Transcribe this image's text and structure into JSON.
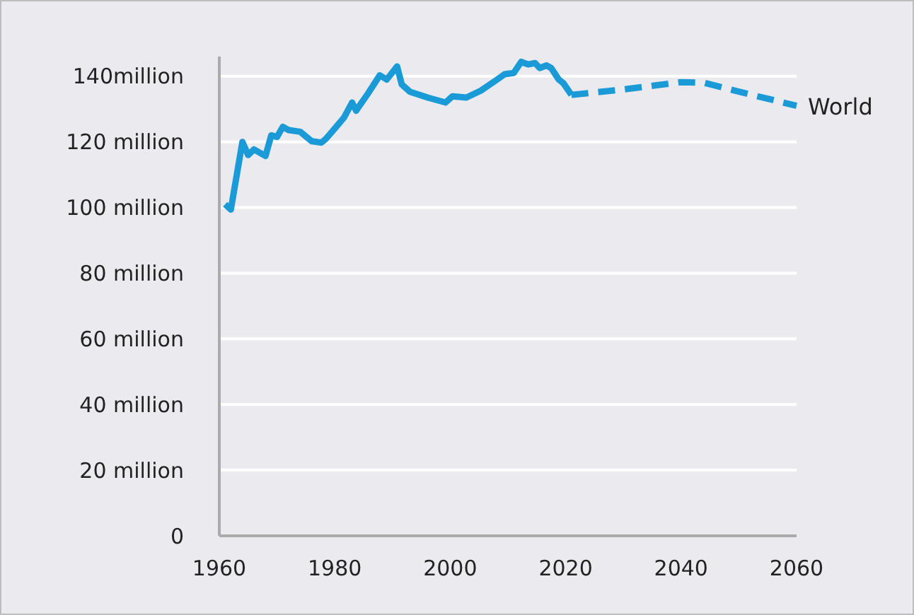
{
  "chart_data": {
    "type": "line",
    "xlim": [
      1960,
      2060
    ],
    "xticks": [
      1960,
      1980,
      2000,
      2020,
      2040,
      2060
    ],
    "ylim": [
      0,
      146
    ],
    "yticks": [
      0,
      {
        "value": 20,
        "label": "20 million"
      },
      {
        "value": 40,
        "label": "40 million"
      },
      {
        "value": 60,
        "label": "60 million"
      },
      {
        "value": 80,
        "label": "80 million"
      },
      {
        "value": 100,
        "label": "100 million"
      },
      {
        "value": 120,
        "label": "120 million"
      },
      {
        "value": 140,
        "label": "140million"
      }
    ],
    "grid": "y",
    "series": [
      {
        "color": "#1a9ad6",
        "line_style": "solid",
        "x": [
          1961,
          1962,
          1964,
          1965,
          1966,
          1968,
          1969,
          1970,
          1971,
          1972,
          1974,
          1976,
          1977.7,
          1978.5,
          1980.4,
          1981.6,
          1983,
          1983.7,
          1985.7,
          1987.8,
          1989,
          1990.8,
          1991.6,
          1993,
          1996.3,
          1999.2,
          2000.4,
          2002.8,
          2005.3,
          2007.8,
          2009.4,
          2011,
          2012.3,
          2013.5,
          2014.7,
          2015.5,
          2016.7,
          2017.5,
          2018.8,
          2019.6,
          2021
        ],
        "values": [
          101,
          99.4,
          120,
          116,
          117.7,
          115.7,
          122,
          121.5,
          124.6,
          123.6,
          123.1,
          120.2,
          119.8,
          121,
          124.9,
          127.4,
          132,
          129.5,
          134.6,
          140.3,
          139,
          143,
          137.5,
          135.3,
          133.4,
          132,
          133.9,
          133.5,
          135.6,
          138.6,
          140.6,
          141,
          144.4,
          143.6,
          144,
          142.5,
          143.3,
          142.5,
          139,
          137.9,
          134.3
        ]
      },
      {
        "name": "World",
        "color": "#1a9ad6",
        "line_style": "dashed",
        "x": [
          2021,
          2030,
          2040,
          2044,
          2050,
          2060
        ],
        "values": [
          134.3,
          136,
          138.2,
          138,
          135.3,
          131
        ]
      }
    ]
  }
}
